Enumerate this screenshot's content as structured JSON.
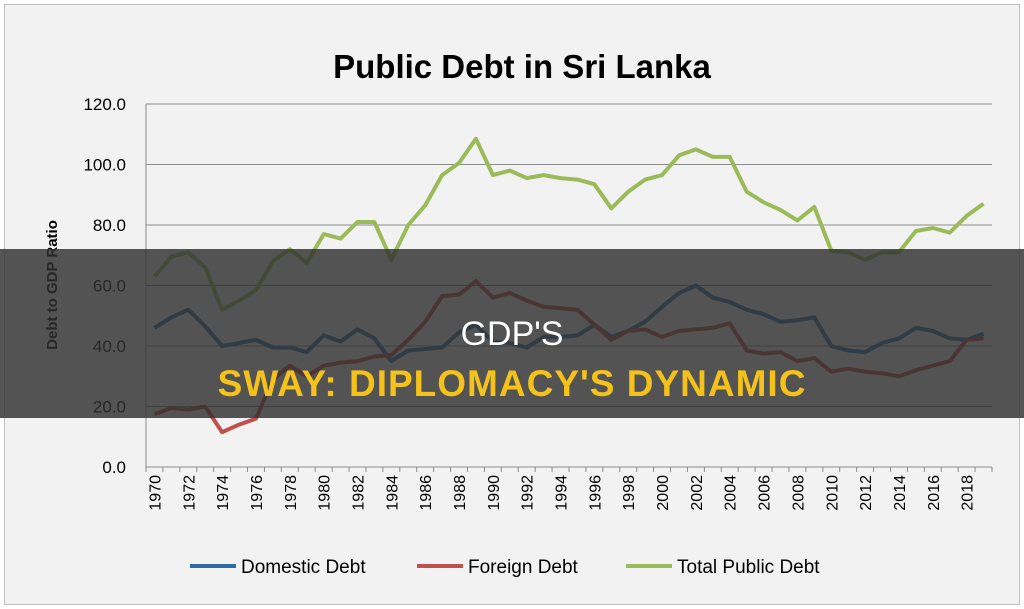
{
  "chart_data": {
    "type": "line",
    "title": "Public Debt in Sri Lanka",
    "xlabel": "",
    "ylabel": "Debt to GDP Ratio",
    "ylim": [
      0,
      120
    ],
    "yticks": [
      "0.0",
      "20.0",
      "40.0",
      "60.0",
      "80.0",
      "100.0",
      "120.0"
    ],
    "grid": true,
    "legend": "bottom",
    "x": [
      1970,
      1971,
      1972,
      1973,
      1974,
      1975,
      1976,
      1977,
      1978,
      1979,
      1980,
      1981,
      1982,
      1983,
      1984,
      1985,
      1986,
      1987,
      1988,
      1989,
      1990,
      1991,
      1992,
      1993,
      1994,
      1995,
      1996,
      1997,
      1998,
      1999,
      2000,
      2001,
      2002,
      2003,
      2004,
      2005,
      2006,
      2007,
      2008,
      2009,
      2010,
      2011,
      2012,
      2013,
      2014,
      2015,
      2016,
      2017,
      2018,
      2019
    ],
    "xticks_shown": [
      "1970",
      "1972",
      "1974",
      "1976",
      "1978",
      "1980",
      "1982",
      "1984",
      "1986",
      "1988",
      "1990",
      "1992",
      "1994",
      "1996",
      "1998",
      "2000",
      "2002",
      "2004",
      "2006",
      "2008",
      "2010",
      "2012",
      "2014",
      "2016",
      "2018"
    ],
    "series": [
      {
        "name": "Domestic Debt",
        "color": "#2e6da4",
        "values": [
          46,
          49.5,
          52,
          46.5,
          40,
          41,
          42,
          39.5,
          39.5,
          38,
          43.5,
          41.5,
          45.5,
          42.5,
          35,
          38.5,
          39,
          39.5,
          44.5,
          47,
          41.5,
          41,
          39.5,
          43,
          43,
          43.5,
          47,
          43,
          45,
          48,
          53,
          57.5,
          60,
          56,
          54.5,
          52,
          50.5,
          48,
          48.5,
          49.5,
          40,
          38.5,
          38,
          41,
          42.5,
          46,
          45,
          42.5,
          42,
          44
        ]
      },
      {
        "name": "Foreign Debt",
        "color": "#c0504d",
        "values": [
          17.5,
          19.5,
          19,
          20,
          11.5,
          14,
          16,
          29,
          33.5,
          30,
          33.5,
          34.5,
          35,
          36.5,
          37,
          42,
          48,
          56.5,
          57,
          61.5,
          56,
          57.5,
          55,
          53,
          52.5,
          52,
          47,
          42,
          45,
          45.5,
          43,
          45,
          45.5,
          46,
          47.5,
          38.5,
          37.5,
          38,
          35,
          36,
          31.5,
          32.5,
          31.5,
          31,
          30,
          32,
          33.5,
          35,
          42,
          42.5
        ]
      },
      {
        "name": "Total Public Debt",
        "color": "#9bbb59",
        "values": [
          63,
          69.5,
          71,
          66,
          52,
          55,
          58.5,
          68,
          72,
          67.5,
          77,
          75.5,
          81,
          81,
          68.5,
          80,
          86.5,
          96.5,
          100.5,
          108.5,
          96.5,
          98,
          95.5,
          96.5,
          95.5,
          95,
          93.5,
          85.5,
          91,
          95,
          96.5,
          103,
          105,
          102.5,
          102.5,
          91,
          87.5,
          85,
          81.5,
          86,
          71.5,
          71,
          68.5,
          71,
          71,
          78,
          79,
          77.5,
          83,
          87
        ]
      }
    ]
  },
  "banner": {
    "line1": "GDP'S",
    "line2": "SWAY: DIPLOMACY'S DYNAMIC"
  }
}
